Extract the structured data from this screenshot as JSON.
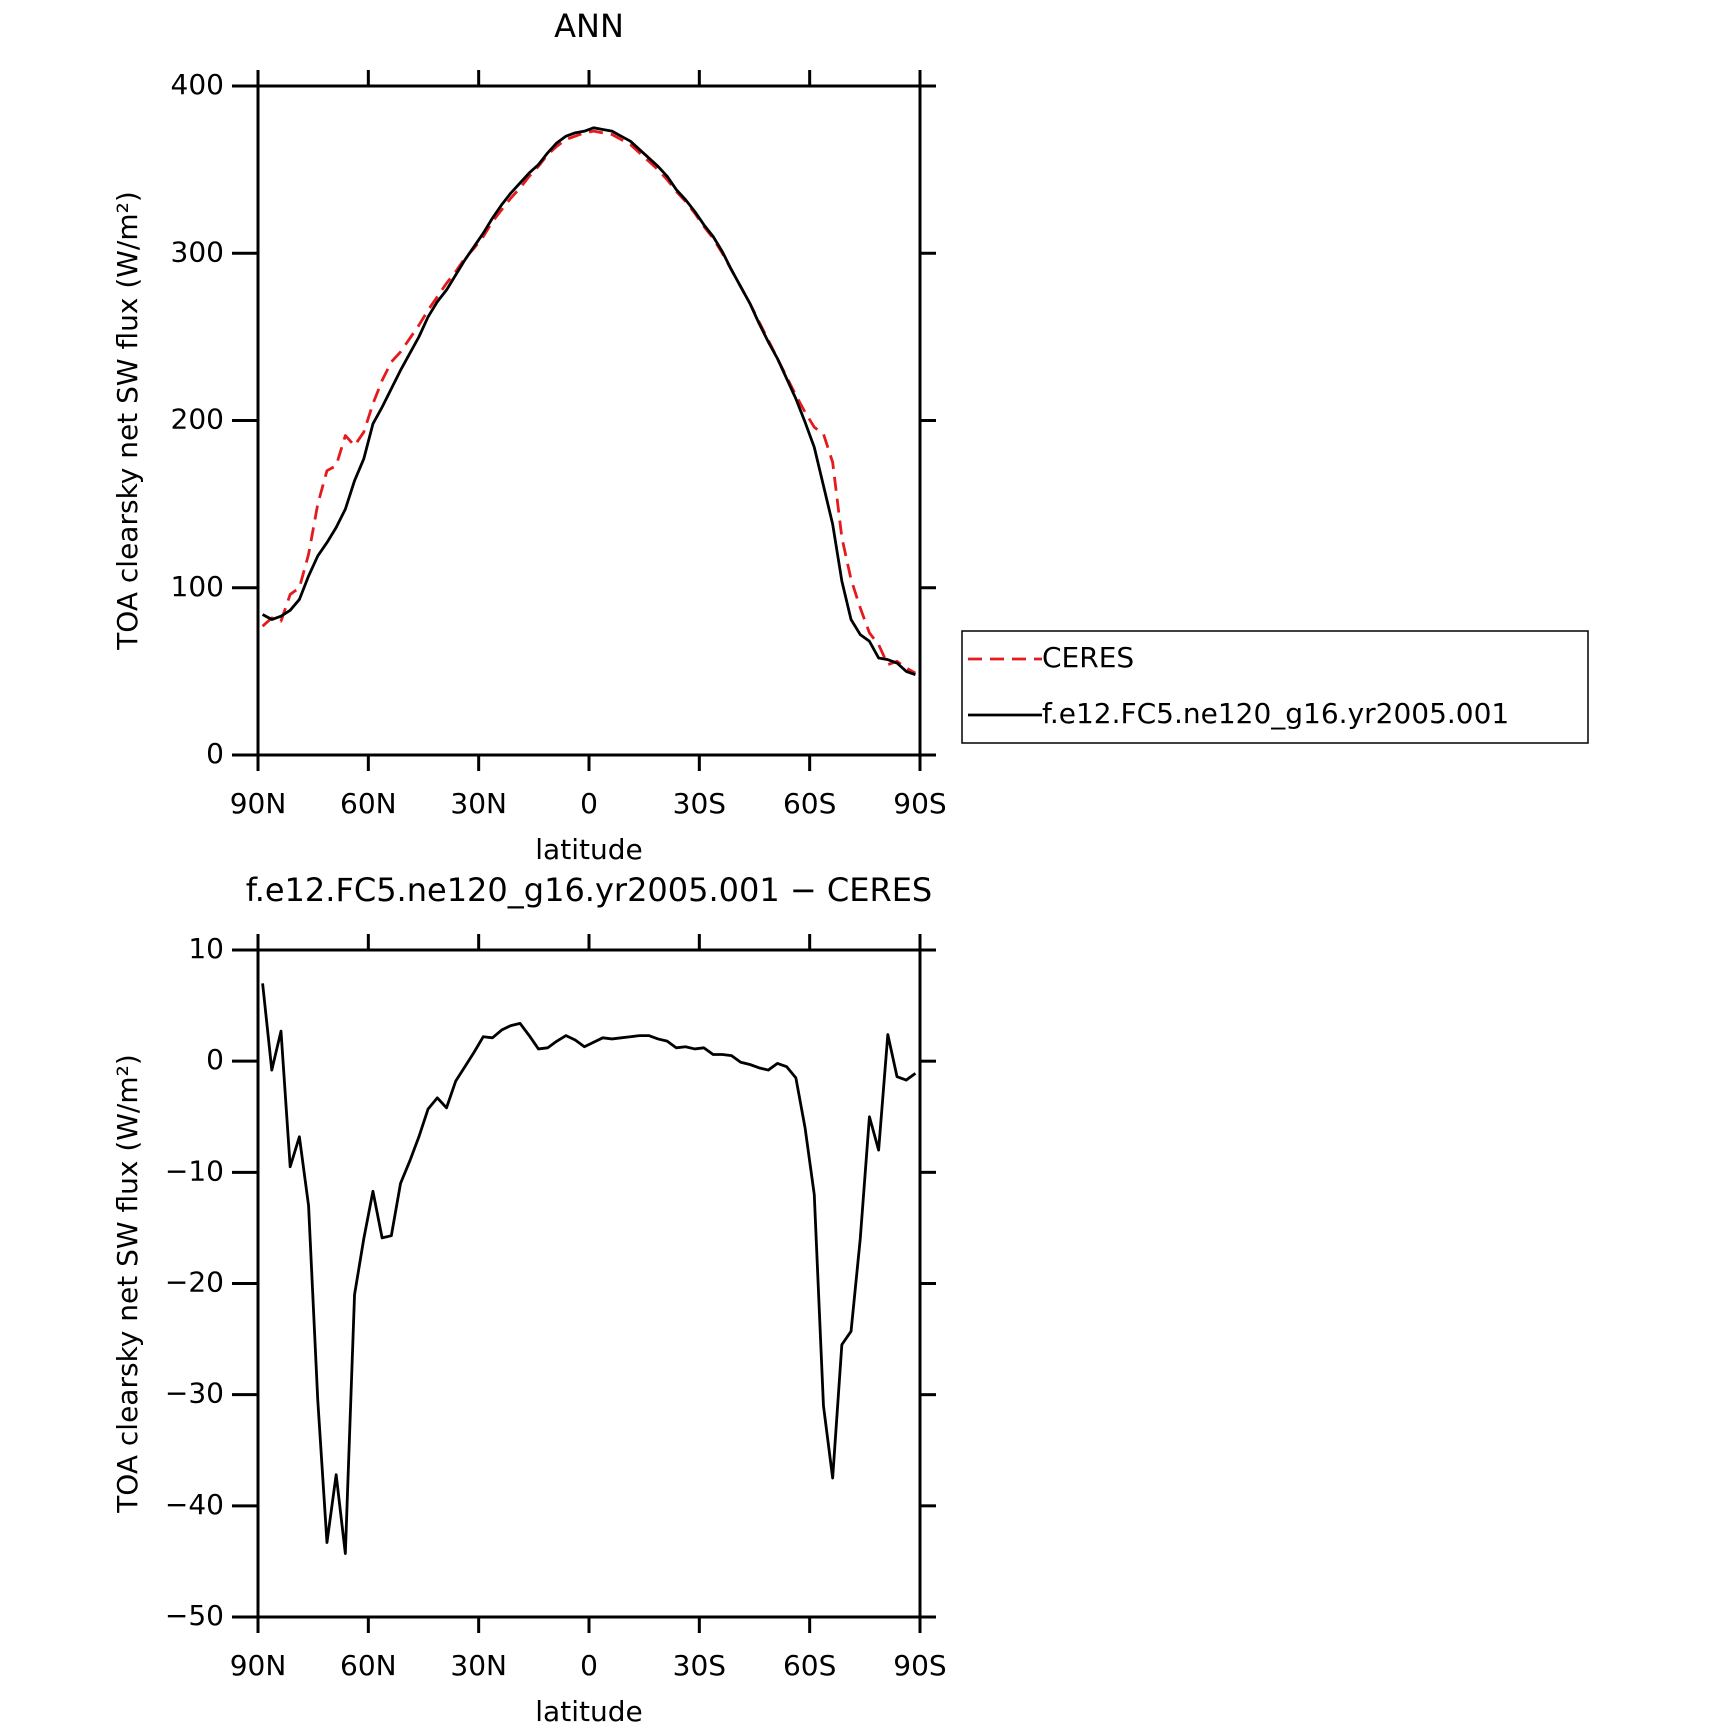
{
  "chart_data": [
    {
      "type": "line",
      "title": "ANN",
      "xlabel": "latitude",
      "ylabel": "TOA clearsky net SW flux (W/m²)",
      "x": [
        88.75,
        86.25,
        83.75,
        81.25,
        78.75,
        76.25,
        73.75,
        71.25,
        68.75,
        66.25,
        63.75,
        61.25,
        58.75,
        56.25,
        53.75,
        51.25,
        48.75,
        46.25,
        43.75,
        41.25,
        38.75,
        36.25,
        33.75,
        31.25,
        28.75,
        26.25,
        23.75,
        21.25,
        18.75,
        16.25,
        13.75,
        11.25,
        8.75,
        6.25,
        3.75,
        1.25,
        -1.25,
        -3.75,
        -6.25,
        -8.75,
        -11.25,
        -13.75,
        -16.25,
        -18.75,
        -21.25,
        -23.75,
        -26.25,
        -28.75,
        -31.25,
        -33.75,
        -36.25,
        -38.75,
        -41.25,
        -43.75,
        -46.25,
        -48.75,
        -51.25,
        -53.75,
        -56.25,
        -58.75,
        -61.25,
        -63.75,
        -66.25,
        -68.75,
        -71.25,
        -73.75,
        -76.25,
        -78.75,
        -81.25,
        -83.75,
        -86.25,
        -88.75
      ],
      "series": [
        {
          "name": "CERES",
          "color": "#e41a1c",
          "dashed": true,
          "values": [
            77,
            82,
            80,
            96,
            100,
            120,
            150,
            170,
            173,
            191,
            185,
            193,
            210,
            224,
            235,
            241,
            249,
            257,
            266,
            274,
            282,
            289,
            297,
            303,
            310,
            319,
            326,
            333,
            339,
            346,
            352,
            359,
            364,
            368,
            370,
            372,
            373,
            372,
            371,
            368,
            365,
            360,
            355,
            350,
            344,
            337,
            331,
            324,
            316,
            309,
            300,
            290,
            280,
            270,
            259,
            248,
            237,
            226,
            215,
            205,
            196,
            192,
            175,
            130,
            105,
            88,
            73,
            66,
            54,
            56,
            52,
            49
          ]
        },
        {
          "name": "f.e12.FC5.ne120_g16.yr2005.001",
          "color": "#000000",
          "dashed": false,
          "values": [
            84,
            81,
            83,
            86.5,
            93,
            107,
            119,
            127,
            136,
            147,
            164,
            177,
            198,
            208,
            219,
            230,
            240,
            250,
            262,
            271,
            278,
            287,
            296,
            304,
            312,
            321,
            329,
            336,
            342,
            348,
            353,
            360,
            366,
            370,
            372,
            373,
            375,
            374,
            373,
            370,
            367,
            362,
            357,
            352,
            346,
            338,
            332,
            325,
            317,
            310,
            301,
            290,
            280,
            270,
            258,
            247,
            237,
            225,
            213,
            199,
            184,
            161,
            138,
            104,
            81,
            72,
            68,
            58,
            57,
            55,
            50,
            48
          ]
        }
      ],
      "xlim": [
        90,
        -90
      ],
      "xticks": [
        {
          "value": 90,
          "label": "90N"
        },
        {
          "value": 60,
          "label": "60N"
        },
        {
          "value": 30,
          "label": "30N"
        },
        0,
        {
          "value": -30,
          "label": "30S"
        },
        {
          "value": -60,
          "label": "60S"
        },
        {
          "value": -90,
          "label": "90S"
        }
      ],
      "ylim": [
        0,
        400
      ],
      "yticks": [
        0,
        100,
        200,
        300,
        400
      ],
      "legend": "right"
    },
    {
      "type": "line",
      "title": "f.e12.FC5.ne120_g16.yr2005.001 − CERES",
      "xlabel": "latitude",
      "ylabel": "TOA clearsky net SW flux (W/m²)",
      "x": [
        88.75,
        86.25,
        83.75,
        81.25,
        78.75,
        76.25,
        73.75,
        71.25,
        68.75,
        66.25,
        63.75,
        61.25,
        58.75,
        56.25,
        53.75,
        51.25,
        48.75,
        46.25,
        43.75,
        41.25,
        38.75,
        36.25,
        33.75,
        31.25,
        28.75,
        26.25,
        23.75,
        21.25,
        18.75,
        16.25,
        13.75,
        11.25,
        8.75,
        6.25,
        3.75,
        1.25,
        -1.25,
        -3.75,
        -6.25,
        -8.75,
        -11.25,
        -13.75,
        -16.25,
        -18.75,
        -21.25,
        -23.75,
        -26.25,
        -28.75,
        -31.25,
        -33.75,
        -36.25,
        -38.75,
        -41.25,
        -43.75,
        -46.25,
        -48.75,
        -51.25,
        -53.75,
        -56.25,
        -58.75,
        -61.25,
        -63.75,
        -66.25,
        -68.75,
        -71.25,
        -73.75,
        -76.25,
        -78.75,
        -81.25,
        -83.75,
        -86.25,
        -88.75
      ],
      "series": [
        {
          "color": "#000000",
          "dashed": false,
          "values": [
            7,
            -0.8,
            2.7,
            -9.5,
            -6.8,
            -13,
            -30.5,
            -43.3,
            -37.2,
            -44.3,
            -21,
            -16,
            -11.7,
            -15.9,
            -15.7,
            -11,
            -9,
            -6.8,
            -4.3,
            -3.3,
            -4.2,
            -1.8,
            -0.5,
            0.8,
            2.2,
            2.1,
            2.8,
            3.2,
            3.4,
            2.3,
            1.1,
            1.2,
            1.8,
            2.3,
            1.9,
            1.3,
            1.7,
            2.1,
            2,
            2.1,
            2.2,
            2.3,
            2.3,
            2,
            1.8,
            1.2,
            1.3,
            1.1,
            1.2,
            0.6,
            0.6,
            0.5,
            -0.1,
            -0.3,
            -0.6,
            -0.8,
            -0.2,
            -0.5,
            -1.5,
            -6,
            -12,
            -31,
            -37.5,
            -25.5,
            -24.3,
            -16,
            -5,
            -8,
            2.4,
            -1.4,
            -1.7,
            -1.1
          ]
        }
      ],
      "xlim": [
        90,
        -90
      ],
      "xticks": [
        {
          "value": 90,
          "label": "90N"
        },
        {
          "value": 60,
          "label": "60N"
        },
        {
          "value": 30,
          "label": "30N"
        },
        0,
        {
          "value": -30,
          "label": "30S"
        },
        {
          "value": -60,
          "label": "60S"
        },
        {
          "value": -90,
          "label": "90S"
        }
      ],
      "ylim": [
        -50,
        10
      ],
      "yticks": [
        {
          "value": -50,
          "label": "−50"
        },
        {
          "value": -40,
          "label": "−40"
        },
        {
          "value": -30,
          "label": "−30"
        },
        {
          "value": -20,
          "label": "−20"
        },
        {
          "value": -10,
          "label": "−10"
        },
        0,
        10
      ]
    }
  ]
}
